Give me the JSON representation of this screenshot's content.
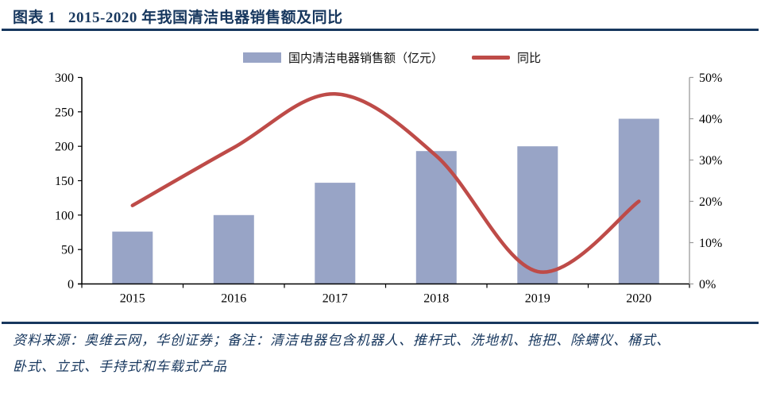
{
  "header": {
    "title": "图表 1   2015-2020 年我国清洁电器销售额及同比"
  },
  "legend": {
    "bar_label": "国内清洁电器销售额（亿元）",
    "line_label": "同比"
  },
  "chart_data": {
    "type": "bar",
    "subtype": "bar+line combo, dual axis",
    "categories": [
      "2015",
      "2016",
      "2017",
      "2018",
      "2019",
      "2020"
    ],
    "series": [
      {
        "name": "国内清洁电器销售额（亿元）",
        "type": "bar",
        "axis": "left",
        "values": [
          76,
          100,
          147,
          193,
          200,
          240
        ]
      },
      {
        "name": "同比",
        "type": "line",
        "axis": "right",
        "values_percent": [
          19,
          33,
          46,
          31,
          3,
          20
        ]
      }
    ],
    "left_axis": {
      "min": 0,
      "max": 300,
      "step": 50,
      "ticks": [
        0,
        50,
        100,
        150,
        200,
        250,
        300
      ]
    },
    "right_axis": {
      "min_percent": 0,
      "max_percent": 50,
      "step_percent": 10,
      "tick_labels": [
        "0%",
        "10%",
        "20%",
        "30%",
        "40%",
        "50%"
      ]
    },
    "title": "2015-2020 年我国清洁电器销售额及同比",
    "xlabel": "",
    "ylabel_left": "亿元",
    "ylabel_right": "%",
    "grid": false,
    "legend_position": "top-center",
    "colors": {
      "bar": "#98A4C6",
      "line": "#BE4B48",
      "axis_left": "#000000",
      "axis_right": "#9B9B9B",
      "tick_text": "#000000"
    }
  },
  "footer": {
    "line1": "资料来源：奥维云网，华创证券；备注：清洁电器包含机器人、推杆式、洗地机、拖把、除螨仪、桶式、",
    "line2": "卧式、立式、手持式和车载式产品"
  },
  "colors": {
    "accent_navy": "#17375E"
  }
}
